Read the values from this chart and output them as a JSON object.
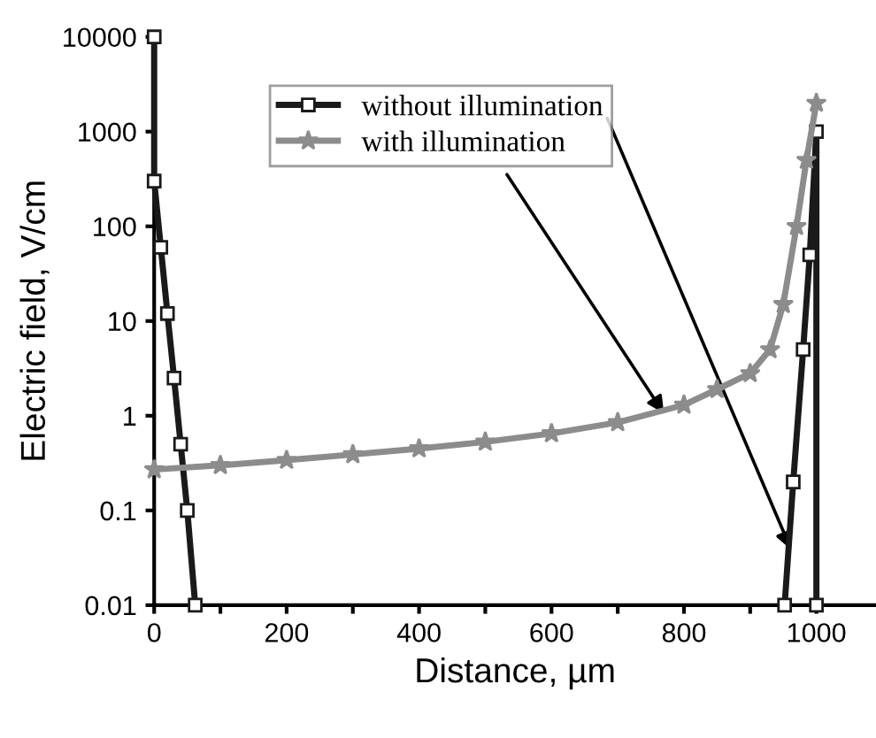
{
  "chart_data": {
    "type": "line",
    "xlabel": "Distance, µm",
    "ylabel": "Electric field, V/cm",
    "log": "y",
    "xlim": [
      0,
      1090
    ],
    "ylim": [
      0.01,
      10000
    ],
    "xticks": [
      0,
      {
        "value": 100,
        "label": null
      },
      200,
      {
        "value": 300,
        "label": null
      },
      400,
      {
        "value": 500,
        "label": null
      },
      600,
      {
        "value": 700,
        "label": null
      },
      800,
      {
        "value": 900,
        "label": null
      },
      1000
    ],
    "yticks": [
      0.01,
      0.1,
      1,
      10,
      100,
      1000,
      10000
    ],
    "grid": false,
    "legend": "top left",
    "series": [
      {
        "name": "without illumination",
        "color": "#1a1a1a",
        "marker": "square",
        "line_style": "solid",
        "x": [
          0,
          0,
          10,
          20,
          30,
          40,
          50,
          62,
          500,
          952,
          965,
          980,
          990,
          1000,
          1000
        ],
        "values": [
          10000,
          300,
          60,
          12,
          2.5,
          0.5,
          0.1,
          0.01,
          null,
          0.01,
          0.2,
          5,
          50,
          1000,
          0.01
        ]
      },
      {
        "name": "with illumination",
        "color": "#8c8c8c",
        "marker": "star",
        "line_style": "solid",
        "x": [
          0,
          100,
          200,
          300,
          400,
          500,
          600,
          700,
          800,
          850,
          900,
          930,
          950,
          970,
          985,
          1000
        ],
        "values": [
          0.27,
          0.3,
          0.34,
          0.39,
          0.45,
          0.53,
          0.65,
          0.85,
          1.3,
          1.9,
          2.8,
          5,
          15,
          100,
          500,
          2000
        ]
      }
    ]
  }
}
